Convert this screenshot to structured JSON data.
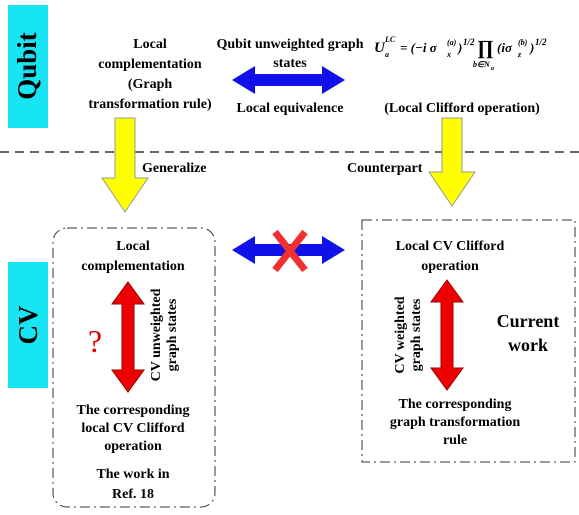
{
  "qubit_label": "Qubit",
  "cv_label": "CV",
  "top_left": [
    "Local",
    "complementation",
    "(Graph",
    "transformation rule)"
  ],
  "top_center": [
    "Qubit unweighted graph",
    "states"
  ],
  "local_equivalence": "Local equivalence",
  "formula": {
    "lhs": "U",
    "lhs_sub": "a",
    "lhs_sup": "LC",
    "part1": "= (−i σ",
    "part1_sub": "x",
    "part1_sup": "(a)",
    "part2": ")",
    "exp1": "1/2",
    "prod": "∏",
    "prod_sub": "b∈N",
    "prod_sub2": "a",
    "part3": "(iσ",
    "part3_sub": "z",
    "part3_sup": "(b)",
    "part4": ")",
    "exp2": "1/2"
  },
  "top_right": "(Local Clifford operation)",
  "generalize": "Generalize",
  "counterpart": "Counterpart",
  "left_box": {
    "top": [
      "Local",
      "complementation"
    ],
    "question": "?",
    "side": [
      "CV unweighted",
      "graph states"
    ],
    "bottom": [
      "The corresponding",
      "local CV Clifford",
      "operation"
    ],
    "ref": [
      "The work in",
      "Ref. 18"
    ]
  },
  "right_box": {
    "top": [
      "Local CV Clifford",
      "operation"
    ],
    "side": [
      "CV weighted",
      "graph states"
    ],
    "current": [
      "Current",
      "work"
    ],
    "bottom": [
      "The corresponding",
      "graph transformation",
      "rule"
    ]
  }
}
